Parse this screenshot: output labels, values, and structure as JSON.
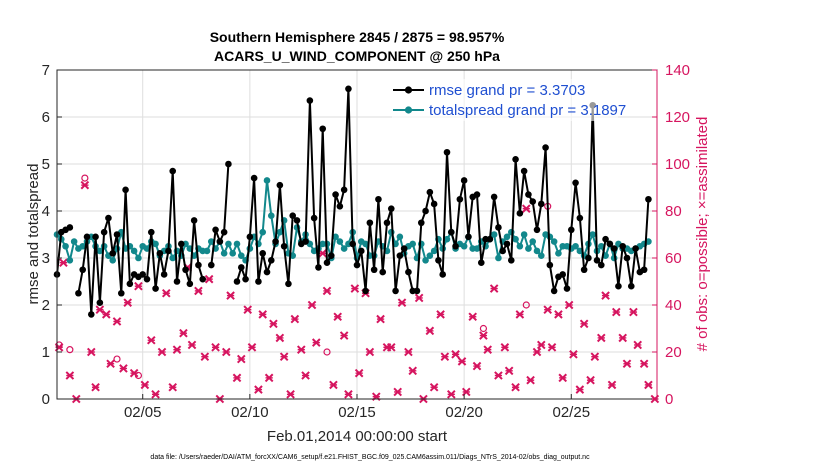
{
  "chart_data": {
    "type": "line",
    "title_line1": "Southern Hemisphere 2845 / 2875 = 98.957%",
    "title_line2": "ACARS_U_WIND_COMPONENT @ 250 hPa",
    "xlabel": "Feb.01,2014 00:00:00 start",
    "ylabel_left": "rmse and totalspread",
    "ylabel_right": "# of obs: o=possible; ×=assimilated",
    "ylim_left": [
      0,
      7
    ],
    "ylim_right": [
      0,
      140
    ],
    "xlim_days": [
      1,
      29
    ],
    "left_ticks": [
      "0",
      "1",
      "2",
      "3",
      "4",
      "5",
      "6",
      "7"
    ],
    "right_ticks": [
      "0",
      "20",
      "40",
      "60",
      "80",
      "100",
      "120",
      "140"
    ],
    "x_ticks": [
      {
        "day": 5,
        "label": "02/05"
      },
      {
        "day": 10,
        "label": "02/10"
      },
      {
        "day": 15,
        "label": "02/15"
      },
      {
        "day": 20,
        "label": "02/20"
      },
      {
        "day": 25,
        "label": "02/25"
      }
    ],
    "legend": {
      "placement": "top-right",
      "entries": [
        "rmse grand pr = 3.3703",
        "totalspread grand pr = 3.1897"
      ]
    },
    "footnote": "data file: /Users/raeder/DAI/ATM_forcXX/CAM6_setup/f.e21.FHIST_BGC.f09_025.CAM6assim.011/Diags_NTrS_2014-02/obs_diag_output.nc",
    "colors": {
      "rmse": "#000000",
      "spread": "#12888c",
      "obs": "#d6155f"
    },
    "series": [
      {
        "name": "rmse",
        "values": [
          2.65,
          3.55,
          3.6,
          3.65,
          null,
          2.25,
          2.75,
          3.45,
          1.8,
          3.45,
          2.05,
          3.55,
          3.85,
          3.1,
          3.5,
          2.25,
          4.45,
          2.45,
          2.65,
          2.6,
          2.65,
          2.55,
          3.55,
          2.35,
          3.1,
          2.65,
          3.15,
          4.85,
          2.5,
          3.3,
          2.75,
          2.45,
          3.8,
          2.85,
          2.55,
          null,
          2.85,
          3.6,
          3.35,
          3.55,
          5.0,
          null,
          2.5,
          2.8,
          2.55,
          3.45,
          4.7,
          2.5,
          3.1,
          2.7,
          2.95,
          3.35,
          4.55,
          3.25,
          2.45,
          3.9,
          3.8,
          3.3,
          3.35,
          6.35,
          3.85,
          2.8,
          5.75,
          2.9,
          3.05,
          4.35,
          4.1,
          4.45,
          6.6,
          3.3,
          2.85,
          3.15,
          2.3,
          3.75,
          2.75,
          4.25,
          2.7,
          3.75,
          4.05,
          2.3,
          3.05,
          3.2,
          2.7,
          2.3,
          2.3,
          3.75,
          4.0,
          4.4,
          4.15,
          2.95,
          2.65,
          5.25,
          3.55,
          3.25,
          4.25,
          4.65,
          3.45,
          4.3,
          4.35,
          2.9,
          3.4,
          3.4,
          4.3,
          3.65,
          3.15,
          3.3,
          2.95,
          5.1,
          3.95,
          4.85,
          4.35,
          4.2,
          3.6,
          4.15,
          5.35,
          2.85,
          2.3,
          2.6,
          2.65,
          2.35,
          3.6,
          4.6,
          3.85,
          2.75,
          3.0,
          6.25,
          2.95,
          2.85,
          3.4,
          3.3,
          3.2,
          2.4,
          3.25,
          3.0,
          2.4,
          3.2,
          2.7,
          2.75,
          4.25
        ],
        "start_day": 1.0,
        "step_days": 0.2
      },
      {
        "name": "totalspread",
        "values": [
          3.5,
          3.4,
          3.25,
          2.95,
          3.35,
          3.2,
          3.25,
          3.35,
          3.45,
          3.25,
          3.15,
          3.25,
          3.05,
          2.95,
          3.2,
          3.55,
          3.2,
          3.25,
          3.15,
          3.0,
          3.25,
          3.2,
          3.35,
          3.3,
          3.05,
          3.15,
          3.25,
          3.0,
          3.15,
          3.05,
          3.3,
          3.2,
          3.05,
          3.2,
          3.15,
          3.15,
          3.35,
          3.2,
          3.35,
          3.1,
          3.3,
          3.1,
          3.3,
          3.05,
          2.95,
          3.2,
          3.45,
          3.3,
          3.55,
          4.65,
          3.9,
          3.3,
          3.55,
          3.8,
          3.1,
          3.05,
          3.65,
          3.35,
          3.5,
          3.3,
          3.15,
          3.2,
          3.3,
          3.3,
          3.0,
          3.45,
          3.35,
          3.2,
          3.3,
          3.55,
          3.0,
          3.35,
          3.3,
          3.05,
          3.05,
          3.35,
          3.25,
          3.15,
          3.55,
          3.3,
          3.45,
          3.1,
          3.25,
          3.3,
          3.0,
          3.3,
          2.95,
          3.05,
          3.15,
          3.4,
          3.2,
          3.4,
          3.55,
          3.2,
          3.3,
          3.25,
          3.45,
          3.2,
          3.2,
          3.35,
          3.25,
          3.4,
          3.5,
          3.0,
          3.35,
          3.45,
          3.55,
          3.4,
          3.25,
          3.5,
          3.2,
          3.35,
          3.15,
          3.05,
          3.5,
          3.45,
          3.35,
          3.1,
          3.25,
          3.25,
          3.2,
          3.25,
          3.15,
          3.05,
          3.3,
          3.5,
          3.15,
          3.25,
          3.05,
          3.3,
          3.0,
          3.3,
          3.2,
          3.2,
          3.15,
          3.2,
          3.25,
          3.3,
          3.35
        ],
        "start_day": 1.0,
        "step_days": 0.2
      }
    ],
    "obs_assimilated": [
      {
        "day": 1.1,
        "count": 22
      },
      {
        "day": 1.3,
        "count": 58
      },
      {
        "day": 1.6,
        "count": 10
      },
      {
        "day": 1.9,
        "count": 0
      },
      {
        "day": 2.3,
        "count": 91
      },
      {
        "day": 2.6,
        "count": 20
      },
      {
        "day": 2.8,
        "count": 5
      },
      {
        "day": 3.0,
        "count": 38
      },
      {
        "day": 3.3,
        "count": 36
      },
      {
        "day": 3.5,
        "count": 15
      },
      {
        "day": 3.8,
        "count": 33
      },
      {
        "day": 4.1,
        "count": 13
      },
      {
        "day": 4.3,
        "count": 41
      },
      {
        "day": 4.6,
        "count": 11
      },
      {
        "day": 4.8,
        "count": 48
      },
      {
        "day": 5.1,
        "count": 6
      },
      {
        "day": 5.4,
        "count": 25
      },
      {
        "day": 5.6,
        "count": 2
      },
      {
        "day": 5.9,
        "count": 20
      },
      {
        "day": 6.1,
        "count": 45
      },
      {
        "day": 6.4,
        "count": 5
      },
      {
        "day": 6.6,
        "count": 21
      },
      {
        "day": 6.9,
        "count": 28
      },
      {
        "day": 7.1,
        "count": 56
      },
      {
        "day": 7.3,
        "count": 23
      },
      {
        "day": 7.6,
        "count": 46
      },
      {
        "day": 7.9,
        "count": 18
      },
      {
        "day": 8.1,
        "count": 51
      },
      {
        "day": 8.4,
        "count": 22
      },
      {
        "day": 8.6,
        "count": 0
      },
      {
        "day": 8.9,
        "count": 20
      },
      {
        "day": 9.1,
        "count": 44
      },
      {
        "day": 9.4,
        "count": 9
      },
      {
        "day": 9.6,
        "count": 17
      },
      {
        "day": 9.9,
        "count": 38
      },
      {
        "day": 10.1,
        "count": 22
      },
      {
        "day": 10.4,
        "count": 4
      },
      {
        "day": 10.6,
        "count": 36
      },
      {
        "day": 10.9,
        "count": 9
      },
      {
        "day": 11.1,
        "count": 32
      },
      {
        "day": 11.4,
        "count": 26
      },
      {
        "day": 11.6,
        "count": 18
      },
      {
        "day": 11.9,
        "count": 2
      },
      {
        "day": 12.1,
        "count": 34
      },
      {
        "day": 12.4,
        "count": 21
      },
      {
        "day": 12.6,
        "count": 10
      },
      {
        "day": 12.9,
        "count": 40
      },
      {
        "day": 13.1,
        "count": 24
      },
      {
        "day": 13.4,
        "count": 62
      },
      {
        "day": 13.6,
        "count": 46
      },
      {
        "day": 13.9,
        "count": 6
      },
      {
        "day": 14.1,
        "count": 35
      },
      {
        "day": 14.4,
        "count": 27
      },
      {
        "day": 14.6,
        "count": 2
      },
      {
        "day": 14.9,
        "count": 47
      },
      {
        "day": 15.1,
        "count": 11
      },
      {
        "day": 15.4,
        "count": 45
      },
      {
        "day": 15.6,
        "count": 20
      },
      {
        "day": 15.9,
        "count": 1
      },
      {
        "day": 16.1,
        "count": 34
      },
      {
        "day": 16.4,
        "count": 22
      },
      {
        "day": 16.6,
        "count": 22
      },
      {
        "day": 16.9,
        "count": 3
      },
      {
        "day": 17.1,
        "count": 41
      },
      {
        "day": 17.4,
        "count": 20
      },
      {
        "day": 17.6,
        "count": 12
      },
      {
        "day": 17.9,
        "count": 43
      },
      {
        "day": 18.1,
        "count": 0
      },
      {
        "day": 18.4,
        "count": 29
      },
      {
        "day": 18.6,
        "count": 5
      },
      {
        "day": 18.9,
        "count": 36
      },
      {
        "day": 19.1,
        "count": 18
      },
      {
        "day": 19.4,
        "count": 2
      },
      {
        "day": 19.6,
        "count": 19
      },
      {
        "day": 19.9,
        "count": 16
      },
      {
        "day": 20.1,
        "count": 3
      },
      {
        "day": 20.4,
        "count": 35
      },
      {
        "day": 20.6,
        "count": 14
      },
      {
        "day": 20.9,
        "count": 27
      },
      {
        "day": 21.1,
        "count": 21
      },
      {
        "day": 21.4,
        "count": 47
      },
      {
        "day": 21.6,
        "count": 10
      },
      {
        "day": 21.9,
        "count": 22
      },
      {
        "day": 22.1,
        "count": 12
      },
      {
        "day": 22.4,
        "count": 5
      },
      {
        "day": 22.6,
        "count": 36
      },
      {
        "day": 22.9,
        "count": 81
      },
      {
        "day": 23.1,
        "count": 8
      },
      {
        "day": 23.4,
        "count": 20
      },
      {
        "day": 23.6,
        "count": 23
      },
      {
        "day": 23.9,
        "count": 38
      },
      {
        "day": 24.1,
        "count": 22
      },
      {
        "day": 24.4,
        "count": 36
      },
      {
        "day": 24.6,
        "count": 9
      },
      {
        "day": 24.9,
        "count": 40
      },
      {
        "day": 25.1,
        "count": 19
      },
      {
        "day": 25.4,
        "count": 4
      },
      {
        "day": 25.6,
        "count": 32
      },
      {
        "day": 25.9,
        "count": 8
      },
      {
        "day": 26.1,
        "count": 18
      },
      {
        "day": 26.4,
        "count": 26
      },
      {
        "day": 26.6,
        "count": 44
      },
      {
        "day": 26.9,
        "count": 6
      },
      {
        "day": 27.1,
        "count": 37
      },
      {
        "day": 27.4,
        "count": 26
      },
      {
        "day": 27.6,
        "count": 15
      },
      {
        "day": 27.9,
        "count": 37
      },
      {
        "day": 28.1,
        "count": 23
      },
      {
        "day": 28.4,
        "count": 15
      },
      {
        "day": 28.6,
        "count": 6
      },
      {
        "day": 28.9,
        "count": 0
      }
    ],
    "obs_possible": [
      {
        "day": 1.1,
        "count": 23
      },
      {
        "day": 1.6,
        "count": 21
      },
      {
        "day": 2.3,
        "count": 94
      },
      {
        "day": 3.8,
        "count": 17
      },
      {
        "day": 4.8,
        "count": 10
      },
      {
        "day": 13.6,
        "count": 20
      },
      {
        "day": 20.9,
        "count": 30
      },
      {
        "day": 22.9,
        "count": 40
      },
      {
        "day": 23.9,
        "count": 82
      }
    ]
  }
}
